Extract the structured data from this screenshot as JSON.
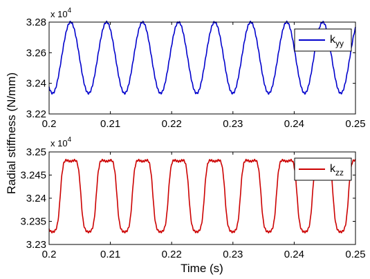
{
  "chart_data": [
    {
      "type": "line",
      "xlabel": "",
      "ylabel": "",
      "xlim": [
        0.2,
        0.25
      ],
      "ylim": [
        32200,
        32800
      ],
      "xticks": [
        "0.2",
        "0.21",
        "0.22",
        "0.23",
        "0.24",
        "0.25"
      ],
      "yticks": [
        "3.22",
        "3.24",
        "3.26",
        "3.28"
      ],
      "y_exponent_label": "x 10",
      "y_exponent_power": "4",
      "legend_position": "top-right",
      "grid": false,
      "series": [
        {
          "name_base": "k",
          "name_sub": "yy",
          "color": "#0000cc",
          "waveform": "sinusoid",
          "period": 0.00588,
          "first_peak_x": 0.2035,
          "min": 32335,
          "max": 32800
        }
      ]
    },
    {
      "type": "line",
      "xlabel": "Time (s)",
      "ylabel": "",
      "xlim": [
        0.2,
        0.25
      ],
      "ylim": [
        32300,
        32500
      ],
      "xticks": [
        "0.2",
        "0.21",
        "0.22",
        "0.23",
        "0.24",
        "0.25"
      ],
      "yticks": [
        "3.23",
        "3.235",
        "3.24",
        "3.245",
        "3.25"
      ],
      "y_exponent_label": "x 10",
      "y_exponent_power": "4",
      "legend_position": "top-right",
      "grid": false,
      "series": [
        {
          "name_base": "k",
          "name_sub": "zz",
          "color": "#cc0000",
          "waveform": "flat-topped",
          "period": 0.00588,
          "first_peak_x": 0.2035,
          "min": 32322,
          "max": 32482
        }
      ]
    }
  ],
  "shared_ylabel": "Radial stiffness (N/mm)"
}
